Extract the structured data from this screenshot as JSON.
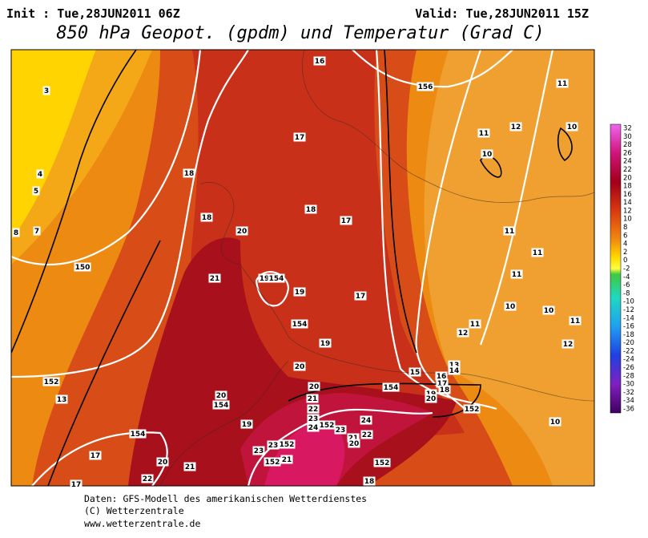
{
  "header": {
    "init": "Init : Tue,28JUN2011 06Z",
    "valid": "Valid: Tue,28JUN2011 15Z",
    "title": "850 hPa Geopot. (gpdm) und Temperatur (Grad C)"
  },
  "legend": {
    "labels": [
      "32",
      "30",
      "28",
      "26",
      "24",
      "22",
      "20",
      "18",
      "16",
      "14",
      "12",
      "10",
      "8",
      "6",
      "4",
      "2",
      "0",
      "-2",
      "-4",
      "-6",
      "-8",
      "-10",
      "-12",
      "-14",
      "-16",
      "-18",
      "-20",
      "-22",
      "-24",
      "-26",
      "-28",
      "-30",
      "-32",
      "-34",
      "-36"
    ]
  },
  "map": {
    "labels": [
      "3",
      "4",
      "5",
      "8",
      "7",
      "150",
      "152",
      "13",
      "154",
      "17",
      "17",
      "22",
      "20",
      "21",
      "18",
      "18",
      "21",
      "20",
      "20",
      "154",
      "19",
      "16",
      "17",
      "18",
      "17",
      "19",
      "154",
      "19",
      "17",
      "154",
      "19",
      "20",
      "20",
      "21",
      "22",
      "23",
      "24",
      "152",
      "23",
      "24",
      "22",
      "21",
      "20",
      "23",
      "23",
      "152",
      "152",
      "21",
      "152",
      "18",
      "154",
      "15",
      "156",
      "11",
      "12",
      "10",
      "11",
      "10",
      "11",
      "11",
      "11",
      "10",
      "10",
      "11",
      "11",
      "12",
      "12",
      "13",
      "14",
      "16",
      "17",
      "18",
      "19",
      "20",
      "152",
      "10"
    ]
  },
  "footer": [
    "Daten: GFS-Modell des amerikanischen Wetterdienstes",
    "(C) Wetterzentrale",
    "www.wetterzentrale.de"
  ]
}
